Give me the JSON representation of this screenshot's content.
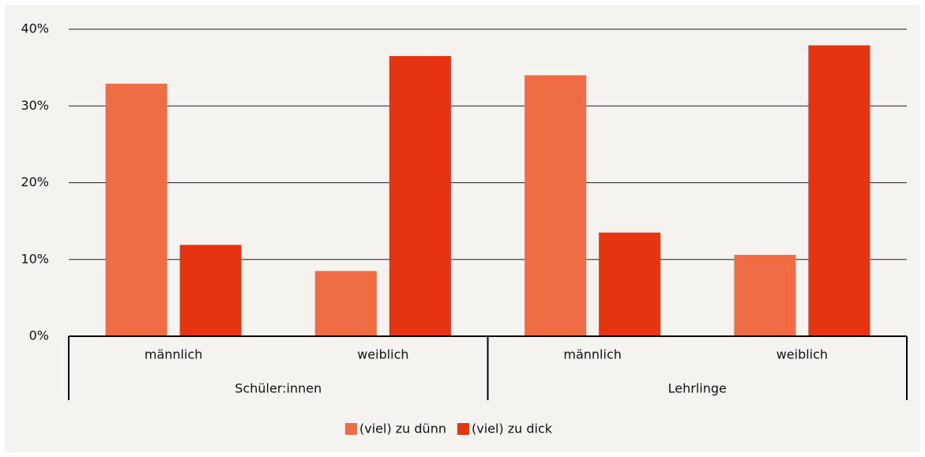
{
  "chart_data": {
    "type": "bar",
    "categories": [
      "männlich",
      "weiblich",
      "männlich",
      "weiblich"
    ],
    "groups": [
      "Schüler:innen",
      "Lehrlinge"
    ],
    "series": [
      {
        "name": "(viel) zu dünn",
        "color": "#ef6c45",
        "values": [
          32.9,
          8.5,
          34.0,
          10.6
        ]
      },
      {
        "name": "(viel) zu dick",
        "color": "#e63312",
        "values": [
          11.9,
          36.5,
          13.5,
          37.9
        ]
      }
    ],
    "ylim": [
      0,
      40
    ],
    "yticks": [
      {
        "value": 0,
        "label": "0%"
      },
      {
        "value": 10,
        "label": "10%"
      },
      {
        "value": 20,
        "label": "20%"
      },
      {
        "value": 30,
        "label": "30%"
      },
      {
        "value": 40,
        "label": "40%"
      }
    ],
    "grid": true,
    "legend": "bottom"
  }
}
